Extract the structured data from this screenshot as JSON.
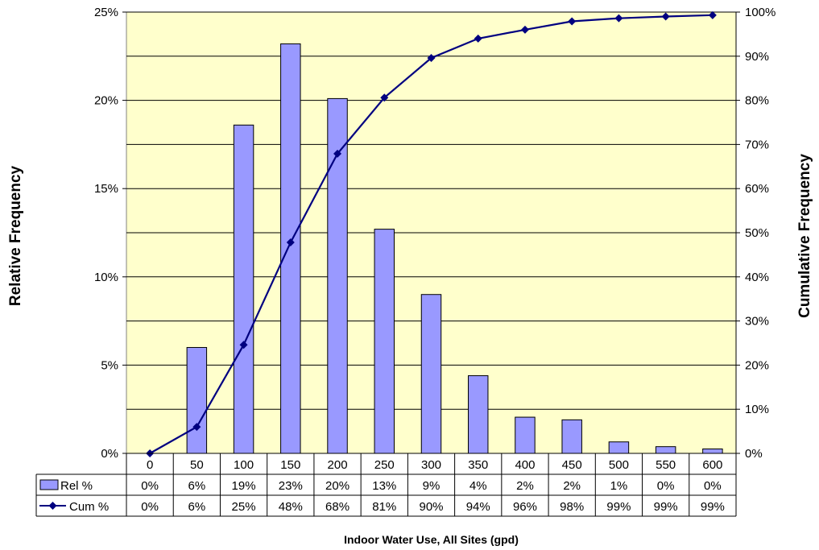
{
  "chart_data": {
    "type": "bar",
    "xlabel": "Indoor Water Use, All Sites (gpd)",
    "ylabel": "Relative Frequency",
    "y2label": "Cumulative Frequency",
    "categories": [
      "0",
      "50",
      "100",
      "150",
      "200",
      "250",
      "300",
      "350",
      "400",
      "450",
      "500",
      "550",
      "600"
    ],
    "ylim": [
      0,
      25
    ],
    "y2lim": [
      0,
      100
    ],
    "y_ticks": [
      "0%",
      "5%",
      "10%",
      "15%",
      "20%",
      "25%"
    ],
    "y2_ticks": [
      "0%",
      "10%",
      "20%",
      "30%",
      "40%",
      "50%",
      "60%",
      "70%",
      "80%",
      "90%",
      "100%"
    ],
    "grid": true,
    "plot_background": "#ffffcc",
    "series": [
      {
        "name": "Rel %",
        "kind": "bar",
        "axis": "left",
        "color": "#9999ff",
        "values": [
          0,
          6.0,
          18.6,
          23.2,
          20.1,
          12.7,
          9.0,
          4.4,
          2.05,
          1.9,
          0.65,
          0.38,
          0.25
        ],
        "table_labels": [
          "0%",
          "6%",
          "19%",
          "23%",
          "20%",
          "13%",
          "9%",
          "4%",
          "2%",
          "2%",
          "1%",
          "0%",
          "0%"
        ]
      },
      {
        "name": "Cum %",
        "kind": "line",
        "axis": "right",
        "color": "#000080",
        "marker": "diamond",
        "values": [
          0,
          6.0,
          24.6,
          47.8,
          67.9,
          80.6,
          89.6,
          94.0,
          96.0,
          97.9,
          98.6,
          99.0,
          99.3
        ],
        "table_labels": [
          "0%",
          "6%",
          "25%",
          "48%",
          "68%",
          "81%",
          "90%",
          "94%",
          "96%",
          "98%",
          "99%",
          "99%",
          "99%"
        ]
      }
    ]
  }
}
